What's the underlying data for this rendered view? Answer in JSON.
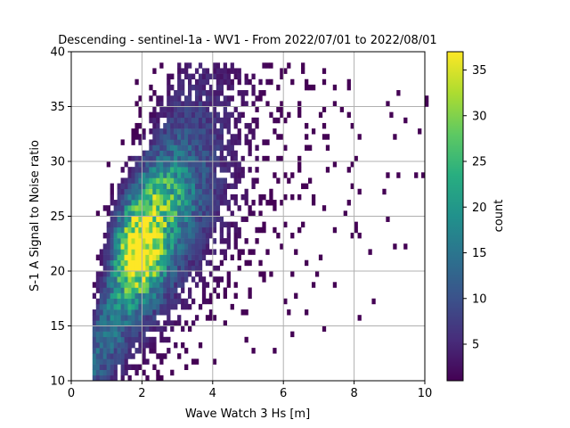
{
  "chart_data": {
    "type": "heatmap",
    "title": "Descending - sentinel-1a - WV1 - From 2022/07/01 to 2022/08/01",
    "xlabel": "Wave Watch 3 Hs [m]",
    "ylabel": "S-1 A Signal to Noise ratio",
    "xlim": [
      0,
      10
    ],
    "ylim": [
      10,
      40
    ],
    "xticks": [
      0,
      2,
      4,
      6,
      8,
      10
    ],
    "yticks": [
      10,
      15,
      20,
      25,
      30,
      35,
      40
    ],
    "grid": true,
    "colormap": "viridis",
    "colorbar": {
      "label": "count",
      "range": [
        1,
        37
      ],
      "ticks": [
        5,
        10,
        15,
        20,
        25,
        30,
        35
      ]
    },
    "bin_size": {
      "x": 0.1,
      "y": 0.5
    },
    "density_model": {
      "description": "2D histogram of Hs vs SNR; peak density ~37 counts near Hs 1.9 m, SNR 22; cluster spans Hs 0.7-10 m, SNR 10-38",
      "peak": {
        "x": 1.9,
        "y": 22,
        "count": 37
      },
      "secondary": {
        "x": 2.4,
        "y": 26,
        "count": 22
      }
    }
  }
}
